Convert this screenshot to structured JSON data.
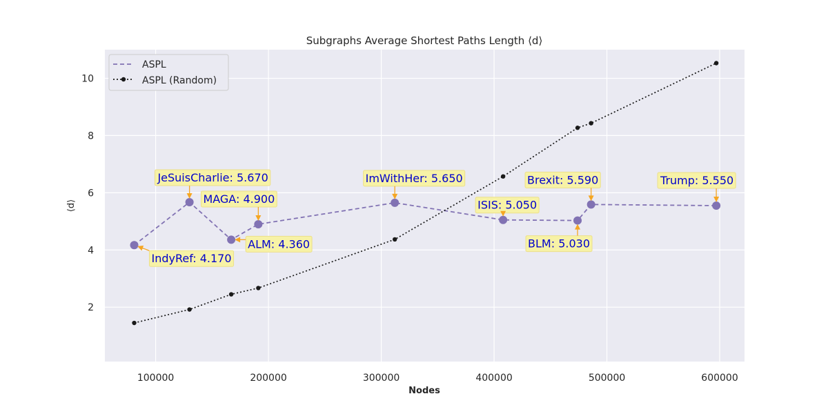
{
  "chart_data": {
    "type": "line",
    "title": "Subgraphs Average Shortest Paths Length ⟨d⟩",
    "xlabel": "Nodes",
    "ylabel": "⟨d⟩",
    "xlim": [
      55000,
      622000
    ],
    "ylim": [
      0.1,
      11.0
    ],
    "xticks": [
      100000,
      200000,
      300000,
      400000,
      500000,
      600000
    ],
    "xtick_labels": [
      "100000",
      "200000",
      "300000",
      "400000",
      "500000",
      "600000"
    ],
    "yticks": [
      2,
      4,
      6,
      8,
      10
    ],
    "ytick_labels": [
      "2",
      "4",
      "6",
      "8",
      "10"
    ],
    "grid": true,
    "legend_position": "top-left",
    "series": [
      {
        "name": "ASPL",
        "color": "#8172b3",
        "style": "dashed",
        "x": [
          81000,
          130000,
          167000,
          191000,
          312000,
          408000,
          474000,
          486000,
          597000
        ],
        "y": [
          4.17,
          5.67,
          4.36,
          4.9,
          5.65,
          5.05,
          5.03,
          5.59,
          5.55
        ]
      },
      {
        "name": "ASPL (Random)",
        "color": "#1a1a1a",
        "style": "dotted",
        "x": [
          81000,
          130000,
          167000,
          191000,
          312000,
          408000,
          474000,
          486000,
          597000
        ],
        "y": [
          1.45,
          1.92,
          2.45,
          2.67,
          4.37,
          6.57,
          8.27,
          8.43,
          10.53
        ]
      }
    ],
    "annotations": [
      {
        "text": "IndyRef: 4.170",
        "point_index": 0
      },
      {
        "text": "JeSuisCharlie: 5.670",
        "point_index": 1
      },
      {
        "text": "ALM: 4.360",
        "point_index": 2
      },
      {
        "text": "MAGA: 4.900",
        "point_index": 3
      },
      {
        "text": "ImWithHer: 5.650",
        "point_index": 4
      },
      {
        "text": "ISIS: 5.050",
        "point_index": 5
      },
      {
        "text": "BLM: 5.030",
        "point_index": 6
      },
      {
        "text": "Brexit: 5.590",
        "point_index": 7
      },
      {
        "text": "Trump: 5.550",
        "point_index": 8
      }
    ],
    "colors": {
      "background": "#eaeaf2",
      "grid": "#ffffff",
      "annotation_box": "#f7f2a6",
      "annotation_border": "#ecdf8b",
      "annotation_text": "#0000cc",
      "annotation_arrow": "#f5a623"
    }
  }
}
